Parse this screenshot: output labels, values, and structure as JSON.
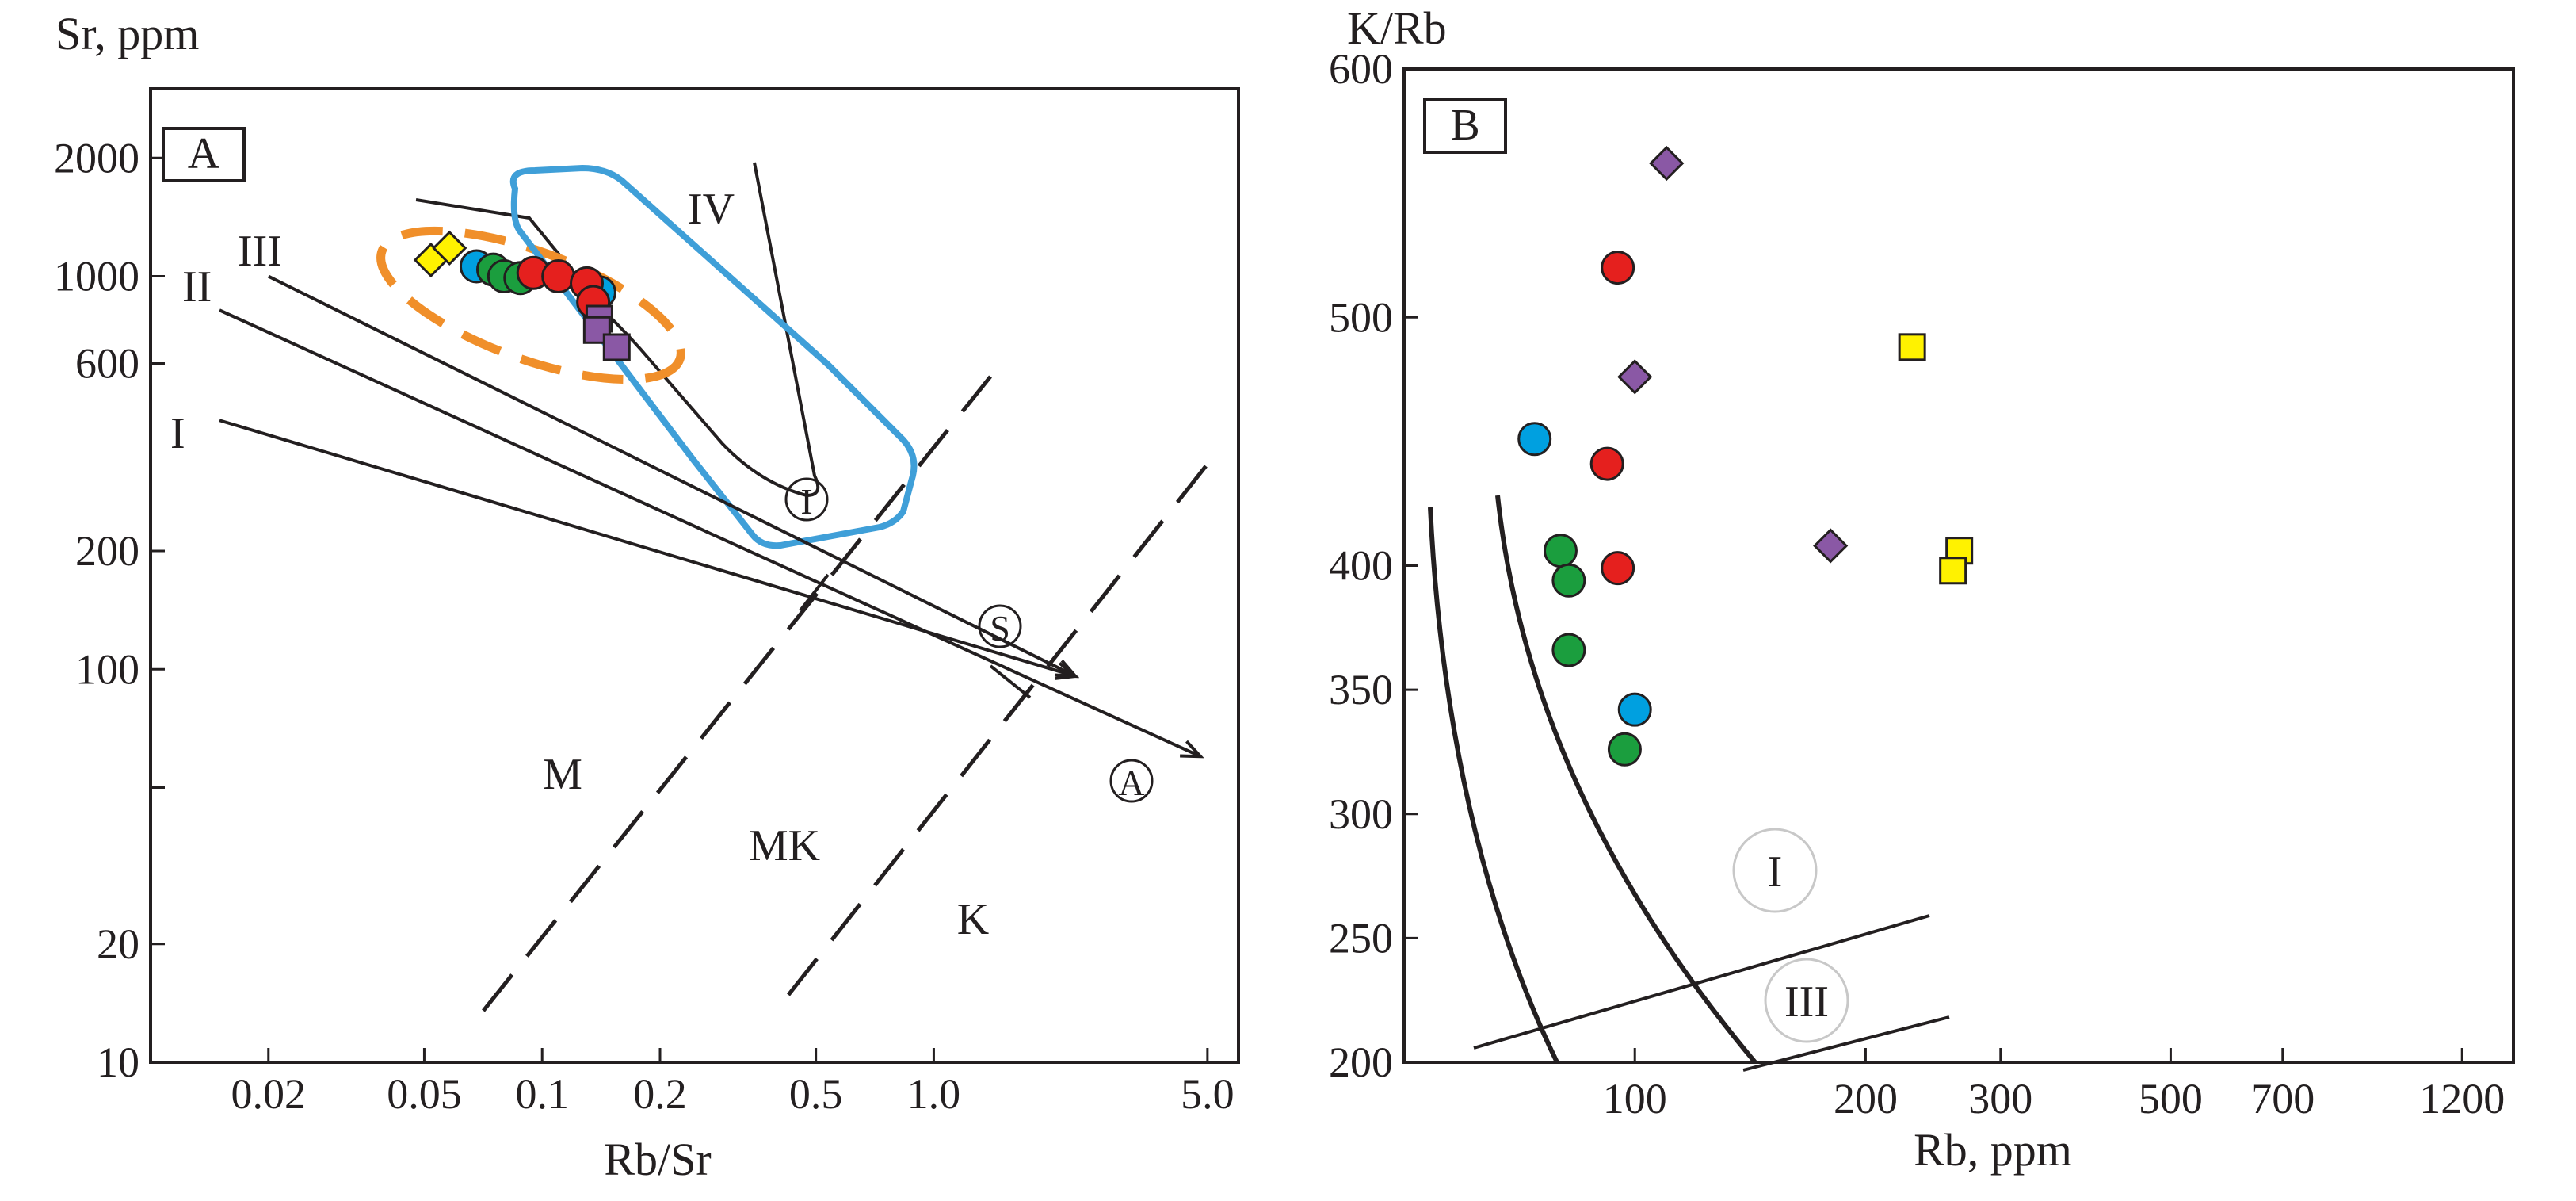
{
  "chart_data": [
    {
      "panel": "A",
      "type": "scatter",
      "x_scale": "log",
      "y_scale": "log",
      "ylabel": "Sr, ppm",
      "xlabel": "Rb/Sr",
      "xlim": [
        0.01,
        6
      ],
      "ylim": [
        10,
        3000
      ],
      "x_ticks": [
        {
          "v": 0.02,
          "label": "0.02"
        },
        {
          "v": 0.05,
          "label": "0.05"
        },
        {
          "v": 0.1,
          "label": "0.1"
        },
        {
          "v": 0.2,
          "label": "0.2"
        },
        {
          "v": 0.5,
          "label": "0.5"
        },
        {
          "v": 1.0,
          "label": "1.0"
        },
        {
          "v": 5.0,
          "label": "5.0"
        }
      ],
      "y_ticks": [
        {
          "v": 10,
          "label": "10"
        },
        {
          "v": 20,
          "label": "20"
        },
        {
          "v": 50,
          "label": ""
        },
        {
          "v": 100,
          "label": "100"
        },
        {
          "v": 200,
          "label": "200"
        },
        {
          "v": 600,
          "label": "600"
        },
        {
          "v": 1000,
          "label": "1000"
        },
        {
          "v": 2000,
          "label": "2000"
        }
      ],
      "series": [
        {
          "name": "yellow diamonds",
          "marker": "diamond",
          "color": "#fff200",
          "points": [
            [
              0.052,
              1100
            ],
            [
              0.058,
              1180
            ],
            [
              0.093,
              1010
            ]
          ]
        },
        {
          "name": "blue circles",
          "marker": "circle",
          "color": "#00a0e0",
          "points": [
            [
              0.068,
              1060
            ],
            [
              0.14,
              910
            ]
          ]
        },
        {
          "name": "green circles",
          "marker": "circle",
          "color": "#1b9e3e",
          "points": [
            [
              0.075,
              1040
            ],
            [
              0.08,
              1000
            ],
            [
              0.088,
              990
            ]
          ]
        },
        {
          "name": "red circles",
          "marker": "circle",
          "color": "#e5201e",
          "points": [
            [
              0.095,
              1020
            ],
            [
              0.11,
              1000
            ],
            [
              0.13,
              960
            ],
            [
              0.135,
              860
            ]
          ]
        },
        {
          "name": "purple squares",
          "marker": "square",
          "color": "#8a58a5",
          "points": [
            [
              0.14,
              780
            ],
            [
              0.138,
              730
            ],
            [
              0.155,
              660
            ]
          ]
        }
      ],
      "trend_lines": [
        {
          "label": "I",
          "from": [
            0.015,
            430
          ],
          "to": [
            2.3,
            96
          ]
        },
        {
          "label": "II",
          "from": [
            0.015,
            820
          ],
          "to": [
            4.8,
            60
          ]
        },
        {
          "label": "III",
          "from": [
            0.02,
            1000
          ],
          "to": [
            2.3,
            96
          ]
        }
      ],
      "zone_labels": {
        "I": "I",
        "II": "II",
        "III": "III",
        "IV": "IV",
        "circled_i": "I",
        "circled_s": "S",
        "circled_a": "A",
        "M": "M",
        "MK": "MK",
        "K": "K"
      }
    },
    {
      "panel": "B",
      "type": "scatter",
      "x_scale": "log",
      "y_scale": "linear",
      "ylabel": "K/Rb",
      "xlabel": "Rb, ppm",
      "ylim": [
        200,
        600
      ],
      "x_ticks": [
        {
          "v": 100,
          "label": "100"
        },
        {
          "v": 200,
          "label": "200"
        },
        {
          "v": 300,
          "label": "300"
        },
        {
          "v": 500,
          "label": "500"
        },
        {
          "v": 700,
          "label": "700"
        },
        {
          "v": 1200,
          "label": "1200"
        }
      ],
      "y_ticks": [
        {
          "v": 200,
          "label": "200"
        },
        {
          "v": 250,
          "label": "250"
        },
        {
          "v": 300,
          "label": "300"
        },
        {
          "v": 350,
          "label": "350"
        },
        {
          "v": 400,
          "label": "400"
        },
        {
          "v": 500,
          "label": "500"
        },
        {
          "v": 600,
          "label": "600"
        }
      ],
      "series": [
        {
          "name": "purple diamonds",
          "marker": "diamond",
          "color": "#8a58a5",
          "points": [
            [
              110,
              562
            ],
            [
              100,
              476
            ],
            [
              180,
              408
            ]
          ]
        },
        {
          "name": "red circles",
          "marker": "circle",
          "color": "#e5201e",
          "points": [
            [
              95,
              520
            ],
            [
              92,
              441
            ],
            [
              95,
              399
            ]
          ]
        },
        {
          "name": "blue circles",
          "marker": "circle",
          "color": "#00a0e0",
          "points": [
            [
              74,
              451
            ],
            [
              100,
              342
            ]
          ]
        },
        {
          "name": "green circles",
          "marker": "circle",
          "color": "#1b9e3e",
          "points": [
            [
              80,
              406
            ],
            [
              82,
              394
            ],
            [
              82,
              366
            ],
            [
              97,
              326
            ]
          ]
        },
        {
          "name": "yellow squares",
          "marker": "square",
          "color": "#fff200",
          "points": [
            [
              230,
              488
            ],
            [
              265,
              406
            ],
            [
              260,
              398
            ]
          ]
        }
      ],
      "zone_labels": {
        "I": "I",
        "III": "III"
      }
    }
  ],
  "panel_a": {
    "tag": "A"
  },
  "panel_b": {
    "tag": "B"
  }
}
